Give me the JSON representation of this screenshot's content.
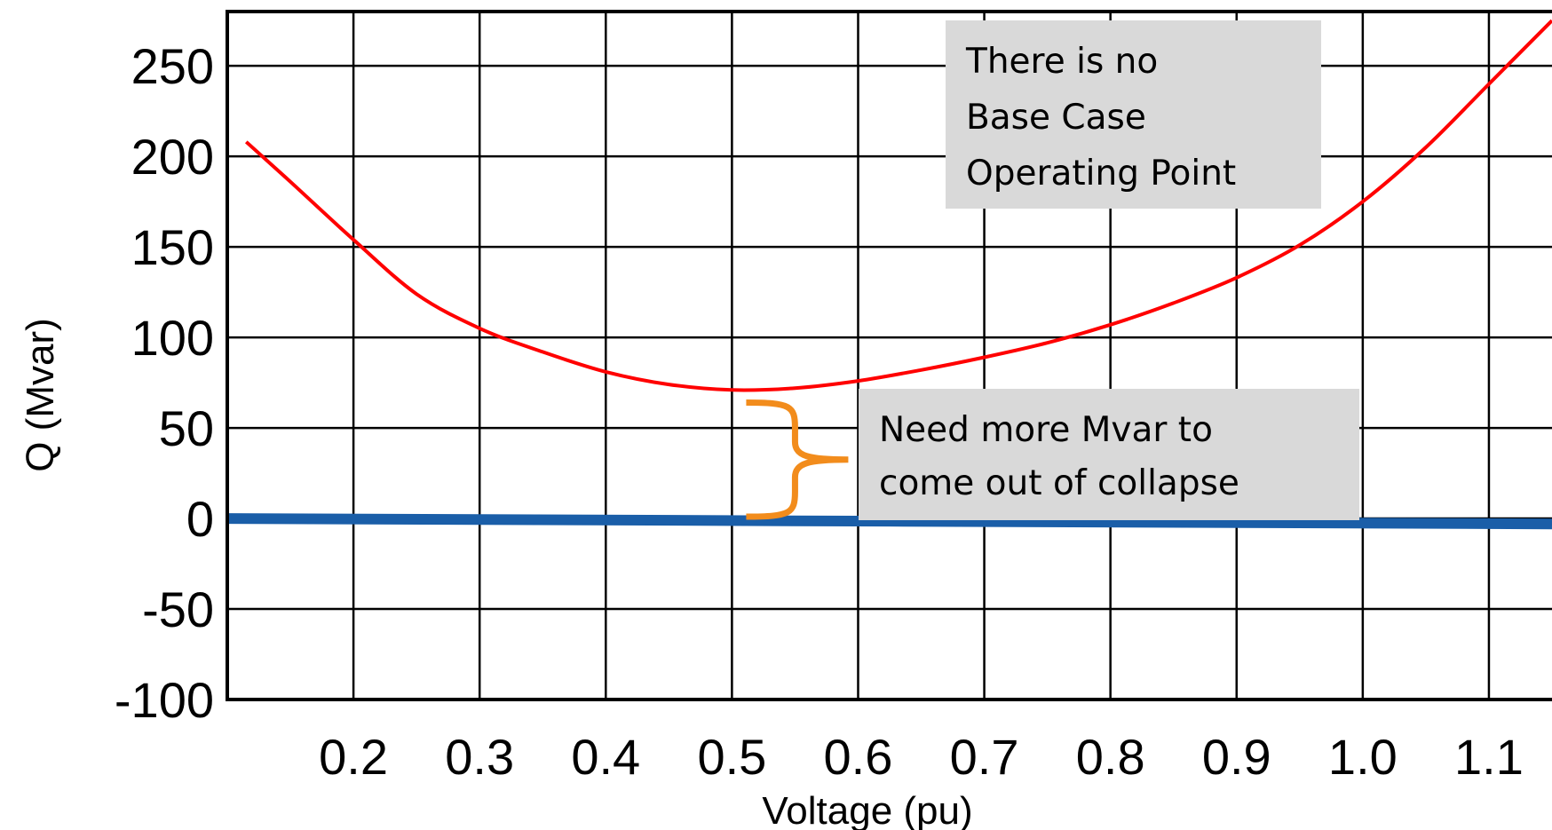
{
  "chart_data": {
    "type": "line",
    "title": "",
    "xlabel": "Voltage (pu)",
    "ylabel": "Q (Mvar)",
    "xlim": [
      0.1,
      1.15
    ],
    "ylim": [
      -100,
      280
    ],
    "grid": true,
    "x_tick_labels": [
      "0.2",
      "0.3",
      "0.4",
      "0.5",
      "0.6",
      "0.7",
      "0.8",
      "0.9",
      "1.0",
      "1.1"
    ],
    "y_tick_labels": [
      "250",
      "200",
      "150",
      "100",
      "50",
      "0",
      "-50",
      "-100"
    ],
    "x_ticks": [
      0.2,
      0.3,
      0.4,
      0.5,
      0.6,
      0.7,
      0.8,
      0.9,
      1.0,
      1.1
    ],
    "y_ticks": [
      250,
      200,
      150,
      100,
      50,
      0,
      -50,
      -100
    ],
    "series": [
      {
        "color": "#ff0000",
        "x": [
          0.115,
          0.15,
          0.2,
          0.25,
          0.3,
          0.35,
          0.4,
          0.45,
          0.5,
          0.55,
          0.6,
          0.65,
          0.7,
          0.75,
          0.8,
          0.85,
          0.9,
          0.95,
          1.0,
          1.05,
          1.1,
          1.15
        ],
        "y": [
          208,
          186,
          154,
          124,
          105,
          92,
          81,
          74,
          71,
          72,
          76,
          82,
          89,
          97,
          107,
          119,
          133,
          151,
          175,
          205,
          240,
          275
        ]
      },
      {
        "color": "#1a5ea8",
        "x": [
          0.1,
          1.15
        ],
        "y": [
          0,
          -3
        ]
      }
    ],
    "annotations": [
      {
        "lines": [
          "There is no",
          "Base Case",
          "Operating Point"
        ]
      },
      {
        "lines": [
          "Need more Mvar to",
          "come out of collapse"
        ]
      }
    ],
    "bracket": {
      "x": 0.55,
      "y_from": 0,
      "y_to": 65,
      "color": "#f28c1c"
    }
  }
}
